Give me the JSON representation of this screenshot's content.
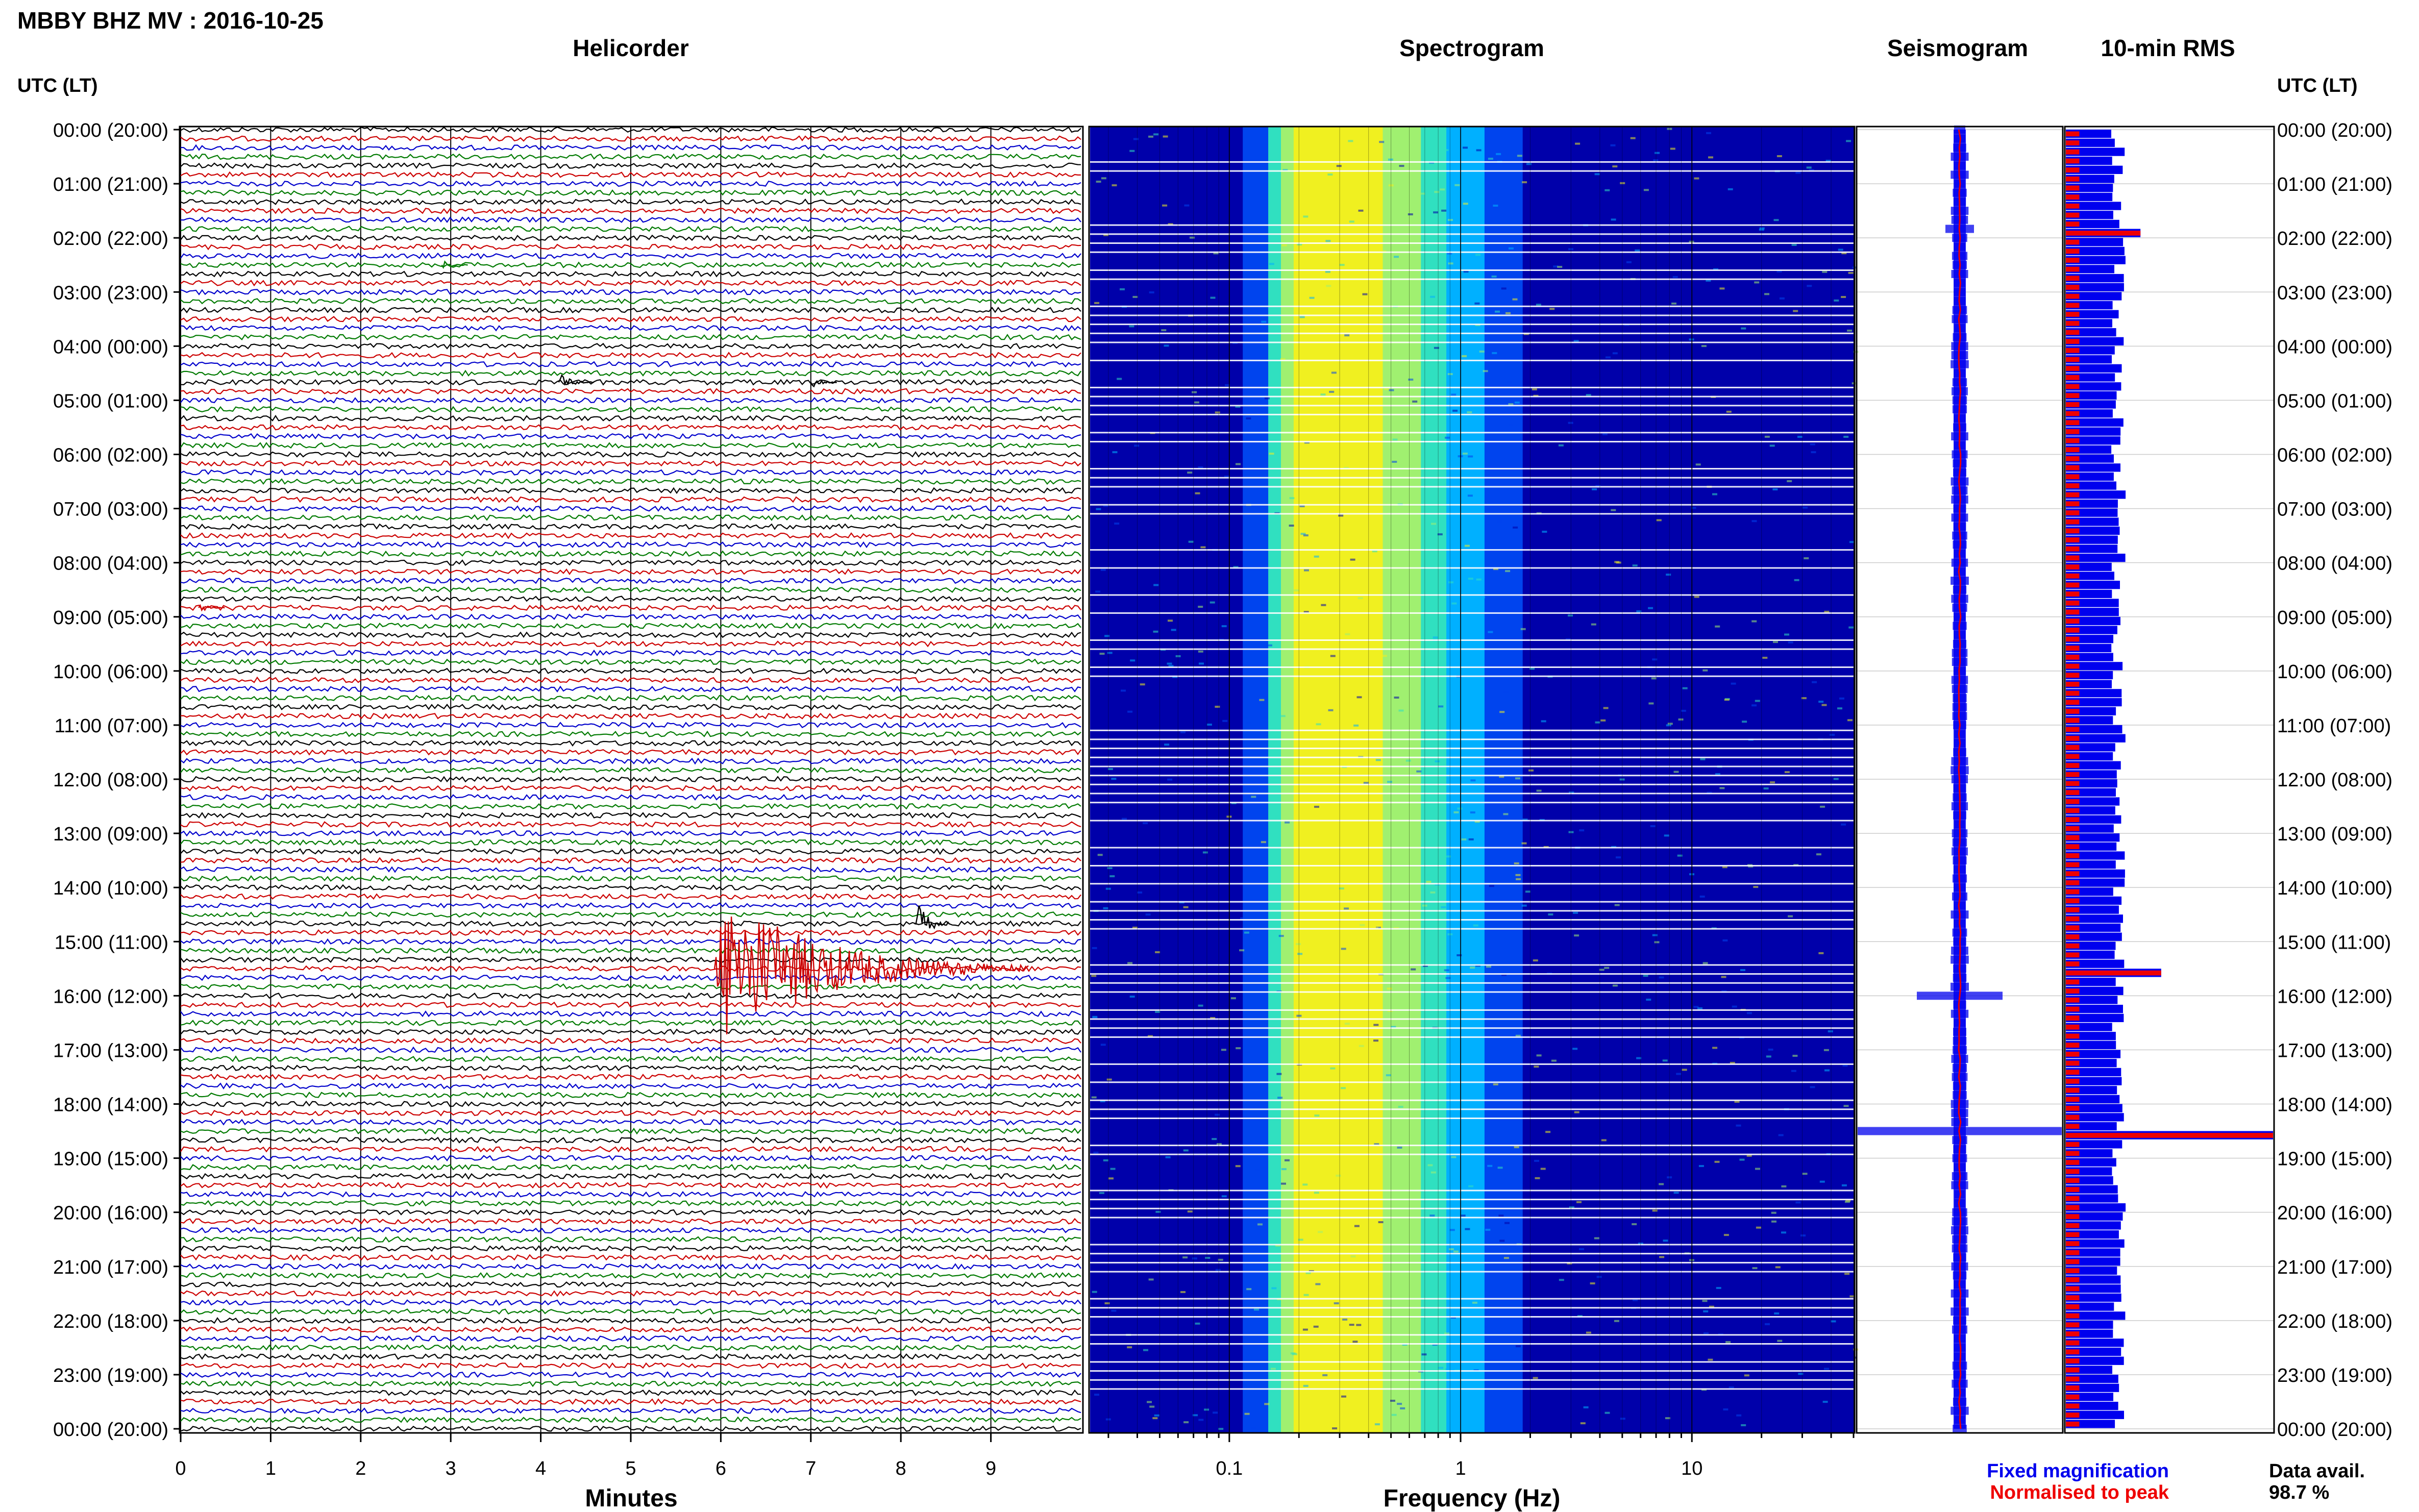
{
  "page": {
    "title": "MBBY BHZ MV : 2016-10-25",
    "utc_label_left": "UTC (LT)",
    "utc_label_right": "UTC (LT)",
    "data_avail_label": "Data avail.",
    "data_avail_value": "98.7 %"
  },
  "colors": {
    "trace_cycle": [
      "#000000",
      "#cc0000",
      "#0000cc",
      "#007a00"
    ],
    "fixed": "#0000ee",
    "normalised": "#ee0000",
    "spectro_background": "#1a33cc"
  },
  "chart_data": [
    {
      "type": "line",
      "name": "helicorder",
      "title": "Helicorder",
      "xlabel": "Minutes",
      "xlim": [
        0,
        10
      ],
      "x_ticks": [
        0,
        1,
        2,
        3,
        4,
        5,
        6,
        7,
        8,
        9
      ],
      "rows_count": 145,
      "row_interval_minutes": 10,
      "hour_labels": [
        "00:00 (20:00)",
        "01:00 (21:00)",
        "02:00 (22:00)",
        "03:00 (23:00)",
        "04:00 (00:00)",
        "05:00 (01:00)",
        "06:00 (02:00)",
        "07:00 (03:00)",
        "08:00 (04:00)",
        "09:00 (05:00)",
        "10:00 (06:00)",
        "11:00 (07:00)",
        "12:00 (08:00)",
        "13:00 (09:00)",
        "14:00 (10:00)",
        "15:00 (11:00)",
        "16:00 (12:00)",
        "17:00 (13:00)",
        "18:00 (14:00)",
        "19:00 (15:00)",
        "20:00 (16:00)",
        "21:00 (17:00)",
        "22:00 (18:00)",
        "23:00 (19:00)",
        "00:00 (20:00)"
      ],
      "events": [
        {
          "row": 15,
          "minute": 2.9,
          "amplitude": 0.6,
          "duration_min": 0.3
        },
        {
          "row": 28,
          "minute": 4.2,
          "amplitude": 1.1,
          "duration_min": 0.4
        },
        {
          "row": 28,
          "minute": 7.0,
          "amplitude": 0.9,
          "duration_min": 0.3
        },
        {
          "row": 53,
          "minute": 0.2,
          "amplitude": 0.7,
          "duration_min": 0.3
        },
        {
          "row": 88,
          "minute": 8.15,
          "amplitude": 3.0,
          "duration_min": 0.4
        },
        {
          "row": 93,
          "minute": 5.93,
          "amplitude": 9.0,
          "duration_min": 3.5
        }
      ]
    },
    {
      "type": "heatmap",
      "name": "spectrogram",
      "title": "Spectrogram",
      "xlabel": "Frequency (Hz)",
      "x_scale": "log",
      "xlim": [
        0.025,
        50
      ],
      "x_tick_labels": [
        "0.1",
        "1",
        "10"
      ],
      "x_tick_values": [
        0.1,
        1,
        10
      ],
      "peak_frequency_hz": 0.25,
      "colormap": [
        "#0000aa",
        "#0044ee",
        "#00b0ff",
        "#30e0c0",
        "#a0f070",
        "#f0f020"
      ]
    },
    {
      "type": "line",
      "name": "seismogram",
      "title": "Seismogram",
      "events_rows": [
        {
          "row": 11,
          "amplitude": 0.14
        },
        {
          "row": 96,
          "amplitude": 0.42
        },
        {
          "row": 111,
          "amplitude": 1.0
        }
      ]
    },
    {
      "type": "bar",
      "name": "rms",
      "title": "10-min RMS",
      "orientation": "horizontal",
      "fixed_baseline": 0.28,
      "events_rows": [
        {
          "row": 11,
          "value": 0.36
        },
        {
          "row": 93,
          "value": 0.46
        },
        {
          "row": 111,
          "value": 1.0
        }
      ],
      "legend": [
        {
          "label": "Fixed magnification",
          "color": "#0000ee"
        },
        {
          "label": "Normalised to peak",
          "color": "#ee0000"
        }
      ]
    }
  ]
}
